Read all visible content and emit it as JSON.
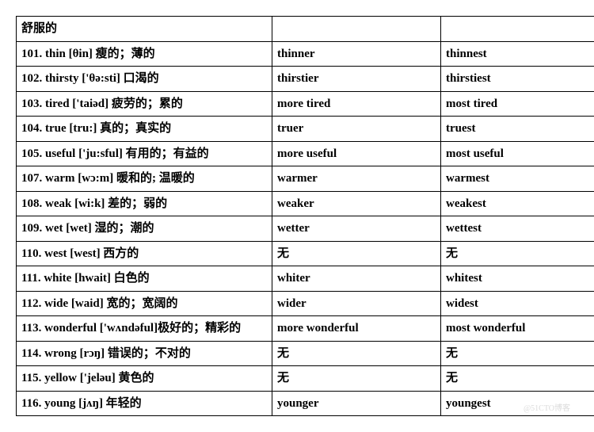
{
  "table": {
    "rows": [
      {
        "col1": "舒服的",
        "col2": "",
        "col3": ""
      },
      {
        "col1": "101. thin [θin]   瘦的；薄的",
        "col2": "thinner",
        "col3": "thinnest"
      },
      {
        "col1": "102. thirsty ['θə:sti]   口渴的",
        "col2": "thirstier",
        "col3": "thirstiest"
      },
      {
        "col1": "103. tired ['taiəd]  疲劳的；累的",
        "col2": "more tired",
        "col3": "most tired"
      },
      {
        "col1": "104. true [tru:]    真的；真实的",
        "col2": "truer",
        "col3": "truest"
      },
      {
        "col1": "105. useful ['ju:sful]  有用的；有益的",
        "col2": "more useful",
        "col3": "most useful"
      },
      {
        "col1": "107. warm [wɔ:m]   暖和的; 温暖的",
        "col2": "warmer",
        "col3": "warmest"
      },
      {
        "col1": "108. weak [wi:k]   差的；弱的",
        "col2": "weaker",
        "col3": "weakest"
      },
      {
        "col1": "109. wet [wet]    湿的；潮的",
        "col2": "wetter",
        "col3": "wettest"
      },
      {
        "col1": "110. west [west]    西方的",
        "col2": "无",
        "col3": "无"
      },
      {
        "col1": "111. white [hwait]    白色的",
        "col2": "whiter",
        "col3": "whitest"
      },
      {
        "col1": "112. wide [waid]     宽的；宽阔的",
        "col2": "wider",
        "col3": "widest"
      },
      {
        "col1": "113. wonderful ['wʌndəful]极好的；精彩的",
        "col2": "more wonderful",
        "col3": "most wonderful"
      },
      {
        "col1": "114. wrong [rɔŋ]    错误的；不对的",
        "col2": "无",
        "col3": "无"
      },
      {
        "col1": "115. yellow ['jeləu]   黄色的",
        "col2": "无",
        "col3": "无"
      },
      {
        "col1": "116. young [jʌŋ]    年轻的",
        "col2": "younger",
        "col3": "youngest"
      }
    ]
  },
  "watermark": "@51CTO博客"
}
